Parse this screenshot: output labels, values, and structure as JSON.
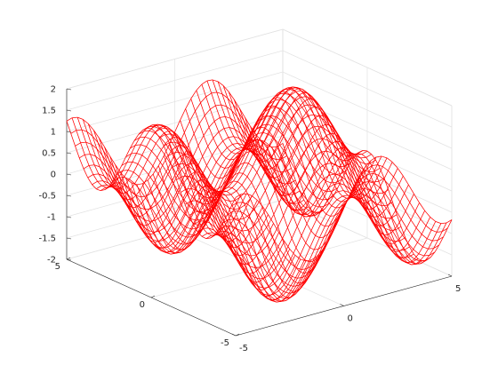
{
  "chart_data": {
    "type": "surface-mesh",
    "function": "z = sin(x) + cos(y)",
    "x": {
      "lim": [
        -5,
        5
      ],
      "ticks": [
        -5,
        0,
        5
      ],
      "tick_labels": [
        "-5",
        "0",
        "5"
      ]
    },
    "y": {
      "lim": [
        -5,
        5
      ],
      "ticks": [
        -5,
        0,
        5
      ],
      "tick_labels": [
        "-5",
        "0",
        "5"
      ]
    },
    "z": {
      "lim": [
        -2,
        2
      ],
      "ticks": [
        -2,
        -1.5,
        -1,
        -0.5,
        0,
        0.5,
        1,
        1.5,
        2
      ],
      "tick_labels": [
        "-2",
        "-1.5",
        "-1",
        "-0.5",
        "0",
        "0.5",
        "1",
        "1.5",
        "2"
      ]
    },
    "grid": true,
    "mesh_resolution": 41,
    "mesh_color": "#ff0000",
    "title": "",
    "xlabel": "",
    "ylabel": "",
    "zlabel": ""
  }
}
